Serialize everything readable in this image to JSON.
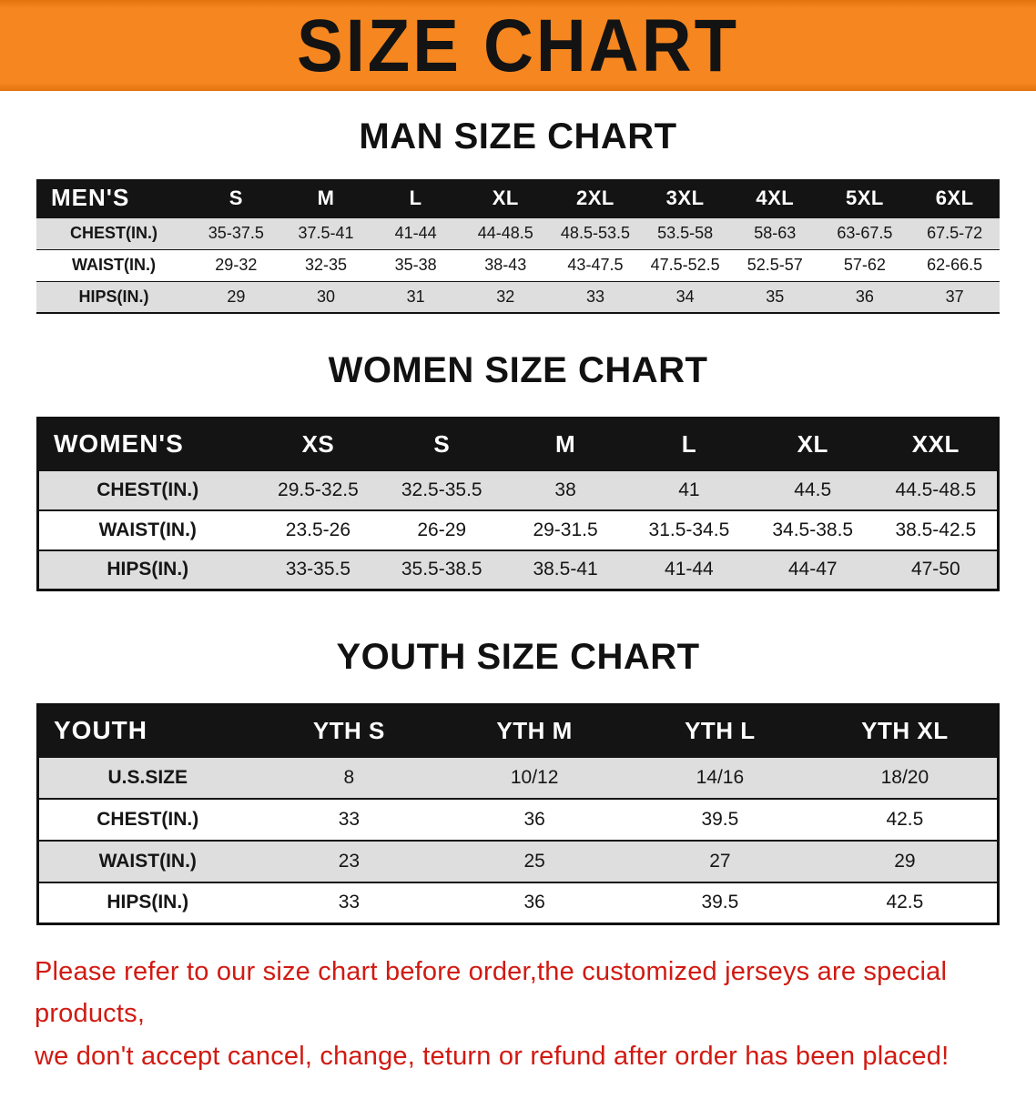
{
  "banner": {
    "title": "SIZE CHART"
  },
  "colors": {
    "banner_bg": "#f6861f",
    "table_header_bg": "#141414",
    "row_alt_bg": "#dedede",
    "footer_text": "#d11a12"
  },
  "sections": [
    {
      "heading": "MAN SIZE CHART",
      "table": {
        "label": "MEN'S",
        "columns": [
          "S",
          "M",
          "L",
          "XL",
          "2XL",
          "3XL",
          "4XL",
          "5XL",
          "6XL"
        ],
        "rows": [
          {
            "label": "CHEST(IN.)",
            "values": [
              "35-37.5",
              "37.5-41",
              "41-44",
              "44-48.5",
              "48.5-53.5",
              "53.5-58",
              "58-63",
              "63-67.5",
              "67.5-72"
            ]
          },
          {
            "label": "WAIST(IN.)",
            "values": [
              "29-32",
              "32-35",
              "35-38",
              "38-43",
              "43-47.5",
              "47.5-52.5",
              "52.5-57",
              "57-62",
              "62-66.5"
            ]
          },
          {
            "label": "HIPS(IN.)",
            "values": [
              "29",
              "30",
              "31",
              "32",
              "33",
              "34",
              "35",
              "36",
              "37"
            ]
          }
        ]
      }
    },
    {
      "heading": "WOMEN SIZE CHART",
      "table": {
        "label": "WOMEN'S",
        "columns": [
          "XS",
          "S",
          "M",
          "L",
          "XL",
          "XXL"
        ],
        "rows": [
          {
            "label": "CHEST(IN.)",
            "values": [
              "29.5-32.5",
              "32.5-35.5",
              "38",
              "41",
              "44.5",
              "44.5-48.5"
            ]
          },
          {
            "label": "WAIST(IN.)",
            "values": [
              "23.5-26",
              "26-29",
              "29-31.5",
              "31.5-34.5",
              "34.5-38.5",
              "38.5-42.5"
            ]
          },
          {
            "label": "HIPS(IN.)",
            "values": [
              "33-35.5",
              "35.5-38.5",
              "38.5-41",
              "41-44",
              "44-47",
              "47-50"
            ]
          }
        ]
      }
    },
    {
      "heading": "YOUTH SIZE CHART",
      "table": {
        "label": "YOUTH",
        "columns": [
          "YTH S",
          "YTH M",
          "YTH L",
          "YTH XL"
        ],
        "rows": [
          {
            "label": "U.S.SIZE",
            "values": [
              "8",
              "10/12",
              "14/16",
              "18/20"
            ]
          },
          {
            "label": "CHEST(IN.)",
            "values": [
              "33",
              "36",
              "39.5",
              "42.5"
            ]
          },
          {
            "label": "WAIST(IN.)",
            "values": [
              "23",
              "25",
              "27",
              "29"
            ]
          },
          {
            "label": "HIPS(IN.)",
            "values": [
              "33",
              "36",
              "39.5",
              "42.5"
            ]
          }
        ]
      }
    }
  ],
  "footer": {
    "line1": "Please refer to our size chart before order,the customized jerseys are special products,",
    "line2": "we don't accept cancel, change, teturn or refund after order has been placed!"
  }
}
